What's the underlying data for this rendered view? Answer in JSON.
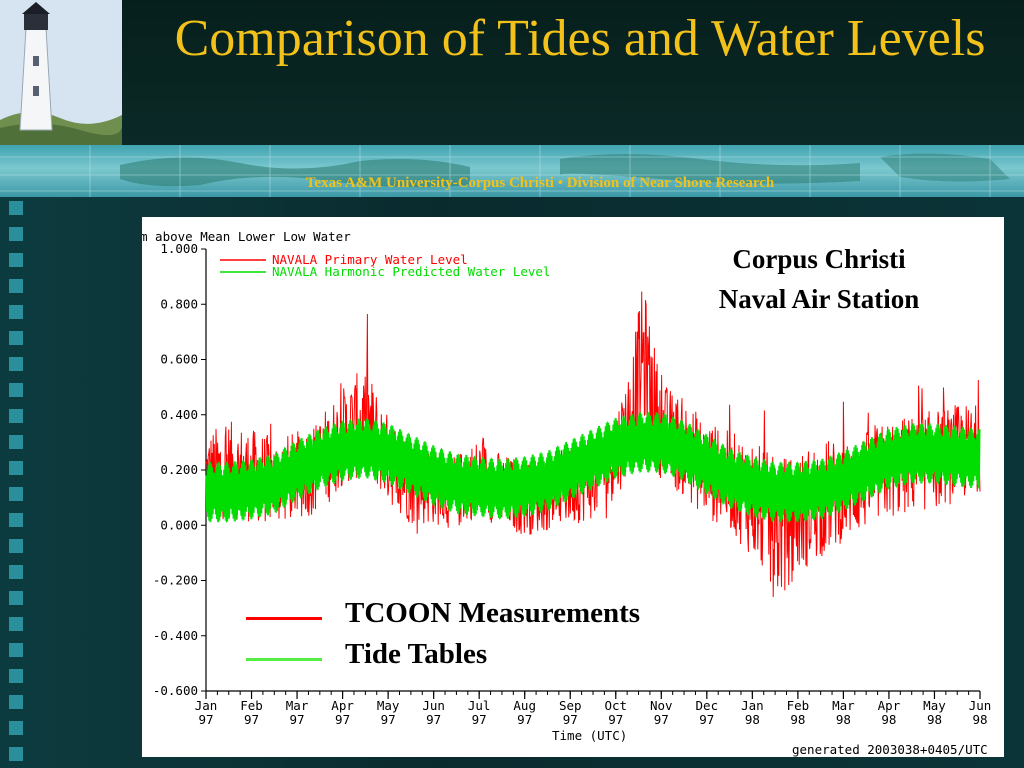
{
  "slide": {
    "title": "Comparison of Tides and Water Levels",
    "band_text": "Texas A&M University-Corpus Christi • Division of Near Shore Research",
    "station_line1": "Corpus Christi",
    "station_line2": "Naval Air Station",
    "legend_measured": "TCOON Measurements",
    "legend_tide": "Tide Tables",
    "colors": {
      "title": "#f2c21a",
      "measured": "#ff0000",
      "tide": "#00dd00"
    }
  },
  "chart_data": {
    "type": "line",
    "ylabel": "m above Mean Lower Low Water",
    "xlabel": "Time (UTC)",
    "footer": "generated 2003038+0405/UTC",
    "ylim": [
      -0.6,
      1.0
    ],
    "yticks": [
      "1.000",
      "0.800",
      "0.600",
      "0.400",
      "0.200",
      "0.000",
      "-0.200",
      "-0.400",
      "-0.600"
    ],
    "ytick_values": [
      1.0,
      0.8,
      0.6,
      0.4,
      0.2,
      0.0,
      -0.2,
      -0.4,
      -0.6
    ],
    "xticks": [
      {
        "m": "Jan",
        "y": "97"
      },
      {
        "m": "Feb",
        "y": "97"
      },
      {
        "m": "Mar",
        "y": "97"
      },
      {
        "m": "Apr",
        "y": "97"
      },
      {
        "m": "May",
        "y": "97"
      },
      {
        "m": "Jun",
        "y": "97"
      },
      {
        "m": "Jul",
        "y": "97"
      },
      {
        "m": "Aug",
        "y": "97"
      },
      {
        "m": "Sep",
        "y": "97"
      },
      {
        "m": "Oct",
        "y": "97"
      },
      {
        "m": "Nov",
        "y": "97"
      },
      {
        "m": "Dec",
        "y": "97"
      },
      {
        "m": "Jan",
        "y": "98"
      },
      {
        "m": "Feb",
        "y": "98"
      },
      {
        "m": "Mar",
        "y": "98"
      },
      {
        "m": "Apr",
        "y": "98"
      },
      {
        "m": "May",
        "y": "98"
      },
      {
        "m": "Jun",
        "y": "98"
      }
    ],
    "xmax_months": 17,
    "series": [
      {
        "name": "NAVALA Primary Water Level",
        "color": "#ff0000",
        "x_months": [
          0,
          0.5,
          1,
          1.5,
          2,
          2.5,
          3,
          3.5,
          4,
          4.5,
          5,
          5.5,
          6,
          6.5,
          7,
          7.5,
          8,
          8.5,
          9,
          9.3,
          9.6,
          10,
          10.5,
          11,
          11.5,
          12,
          12.5,
          13,
          13.5,
          14,
          14.5,
          15,
          15.5,
          16,
          16.5,
          17
        ],
        "values": [
          0.18,
          0.2,
          0.18,
          0.16,
          0.18,
          0.22,
          0.32,
          0.38,
          0.24,
          0.16,
          0.14,
          0.12,
          0.18,
          0.12,
          0.1,
          0.12,
          0.14,
          0.16,
          0.26,
          0.38,
          0.62,
          0.34,
          0.28,
          0.2,
          0.16,
          0.1,
          -0.02,
          0.04,
          0.1,
          0.12,
          0.16,
          0.2,
          0.22,
          0.24,
          0.26,
          0.28
        ],
        "band": [
          0.16,
          0.18,
          0.17,
          0.16,
          0.16,
          0.18,
          0.18,
          0.2,
          0.16,
          0.16,
          0.14,
          0.14,
          0.14,
          0.14,
          0.14,
          0.14,
          0.14,
          0.14,
          0.16,
          0.2,
          0.26,
          0.18,
          0.18,
          0.18,
          0.18,
          0.22,
          0.26,
          0.22,
          0.22,
          0.18,
          0.18,
          0.18,
          0.18,
          0.18,
          0.18,
          0.16
        ]
      },
      {
        "name": "NAVALA Harmonic Predicted Water Level",
        "color": "#00dd00",
        "x_months": [
          0,
          0.5,
          1,
          1.5,
          2,
          2.5,
          3,
          3.5,
          4,
          4.5,
          5,
          5.5,
          6,
          6.5,
          7,
          7.5,
          8,
          8.5,
          9,
          9.5,
          10,
          10.5,
          11,
          11.5,
          12,
          12.5,
          13,
          13.5,
          14,
          14.5,
          15,
          15.5,
          16,
          16.5,
          17
        ],
        "values": [
          0.12,
          0.12,
          0.13,
          0.15,
          0.2,
          0.24,
          0.27,
          0.28,
          0.26,
          0.22,
          0.18,
          0.15,
          0.14,
          0.13,
          0.14,
          0.16,
          0.2,
          0.24,
          0.28,
          0.3,
          0.3,
          0.27,
          0.22,
          0.17,
          0.14,
          0.12,
          0.12,
          0.13,
          0.16,
          0.2,
          0.24,
          0.26,
          0.26,
          0.25,
          0.24
        ],
        "band": [
          0.11,
          0.11,
          0.11,
          0.11,
          0.11,
          0.11,
          0.11,
          0.11,
          0.11,
          0.11,
          0.11,
          0.11,
          0.11,
          0.11,
          0.11,
          0.11,
          0.11,
          0.11,
          0.11,
          0.11,
          0.11,
          0.11,
          0.11,
          0.11,
          0.11,
          0.11,
          0.11,
          0.11,
          0.11,
          0.11,
          0.11,
          0.11,
          0.11,
          0.11,
          0.11
        ]
      }
    ]
  }
}
